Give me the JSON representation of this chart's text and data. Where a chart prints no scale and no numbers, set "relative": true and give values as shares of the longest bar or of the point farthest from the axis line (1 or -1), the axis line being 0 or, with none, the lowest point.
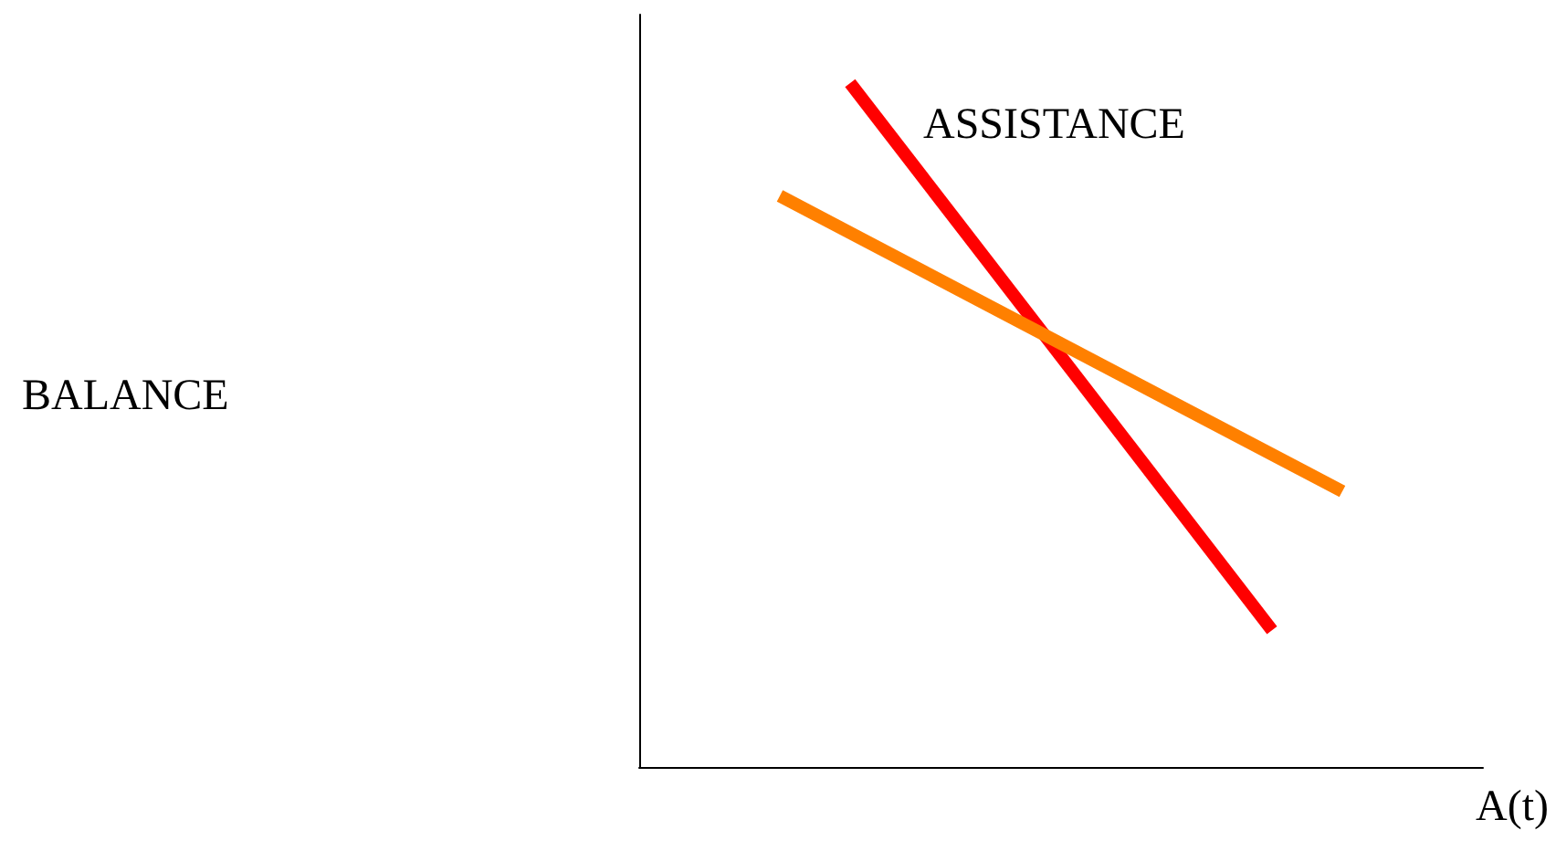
{
  "chart_data": {
    "type": "line",
    "relative": true,
    "xlabel": "A(t)",
    "annotations": [
      "BALANCE"
    ],
    "marker": "none",
    "categories": [
      null,
      null,
      null,
      null,
      null,
      null,
      null,
      null,
      null,
      null,
      null,
      null,
      null
    ],
    "series": [
      {
        "name": "ASSISTANCE",
        "color": "#ff0000",
        "values": [
          null,
          null,
          null,
          1,
          null,
          null,
          null,
          null,
          null,
          0.2,
          null,
          null,
          null
        ]
      },
      {
        "color": "#ff8000",
        "values": [
          null,
          null,
          0.835,
          null,
          null,
          null,
          null,
          null,
          null,
          null,
          0.403,
          null,
          null
        ]
      }
    ]
  }
}
